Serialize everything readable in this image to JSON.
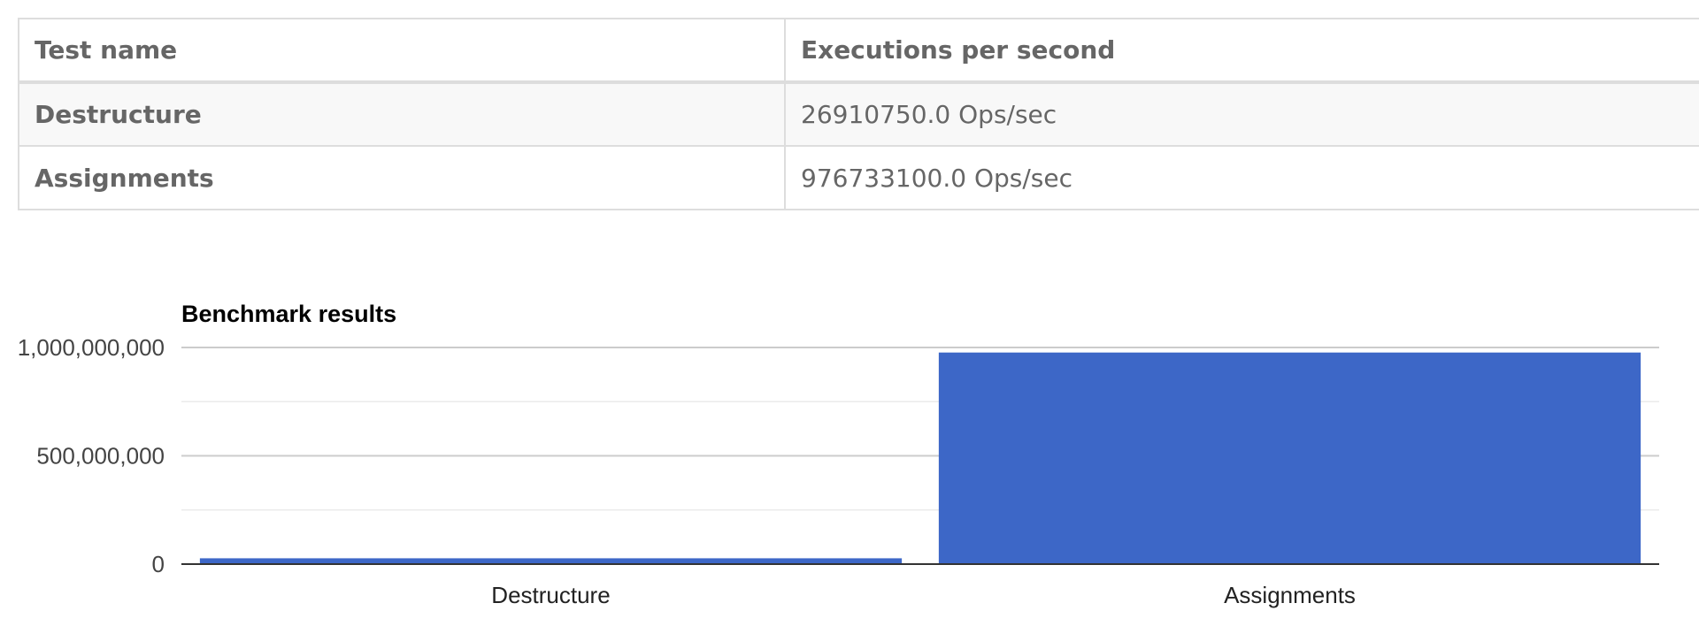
{
  "table": {
    "headers": [
      "Test name",
      "Executions per second"
    ],
    "rows": [
      {
        "name": "Destructure",
        "value": "26910750.0 Ops/sec"
      },
      {
        "name": "Assignments",
        "value": "976733100.0 Ops/sec"
      }
    ]
  },
  "chart_data": {
    "type": "bar",
    "title": "Benchmark results",
    "categories": [
      "Destructure",
      "Assignments"
    ],
    "values": [
      26910750.0,
      976733100.0
    ],
    "ylim": [
      0,
      1000000000
    ],
    "yticks": [
      0,
      500000000,
      1000000000
    ],
    "ytick_labels": [
      "0",
      "500,000,000",
      "1,000,000,000"
    ],
    "minor_gridlines": [
      250000000,
      750000000
    ],
    "grid": true,
    "bar_color": "#3d67c7",
    "xlabel": "",
    "ylabel": ""
  }
}
